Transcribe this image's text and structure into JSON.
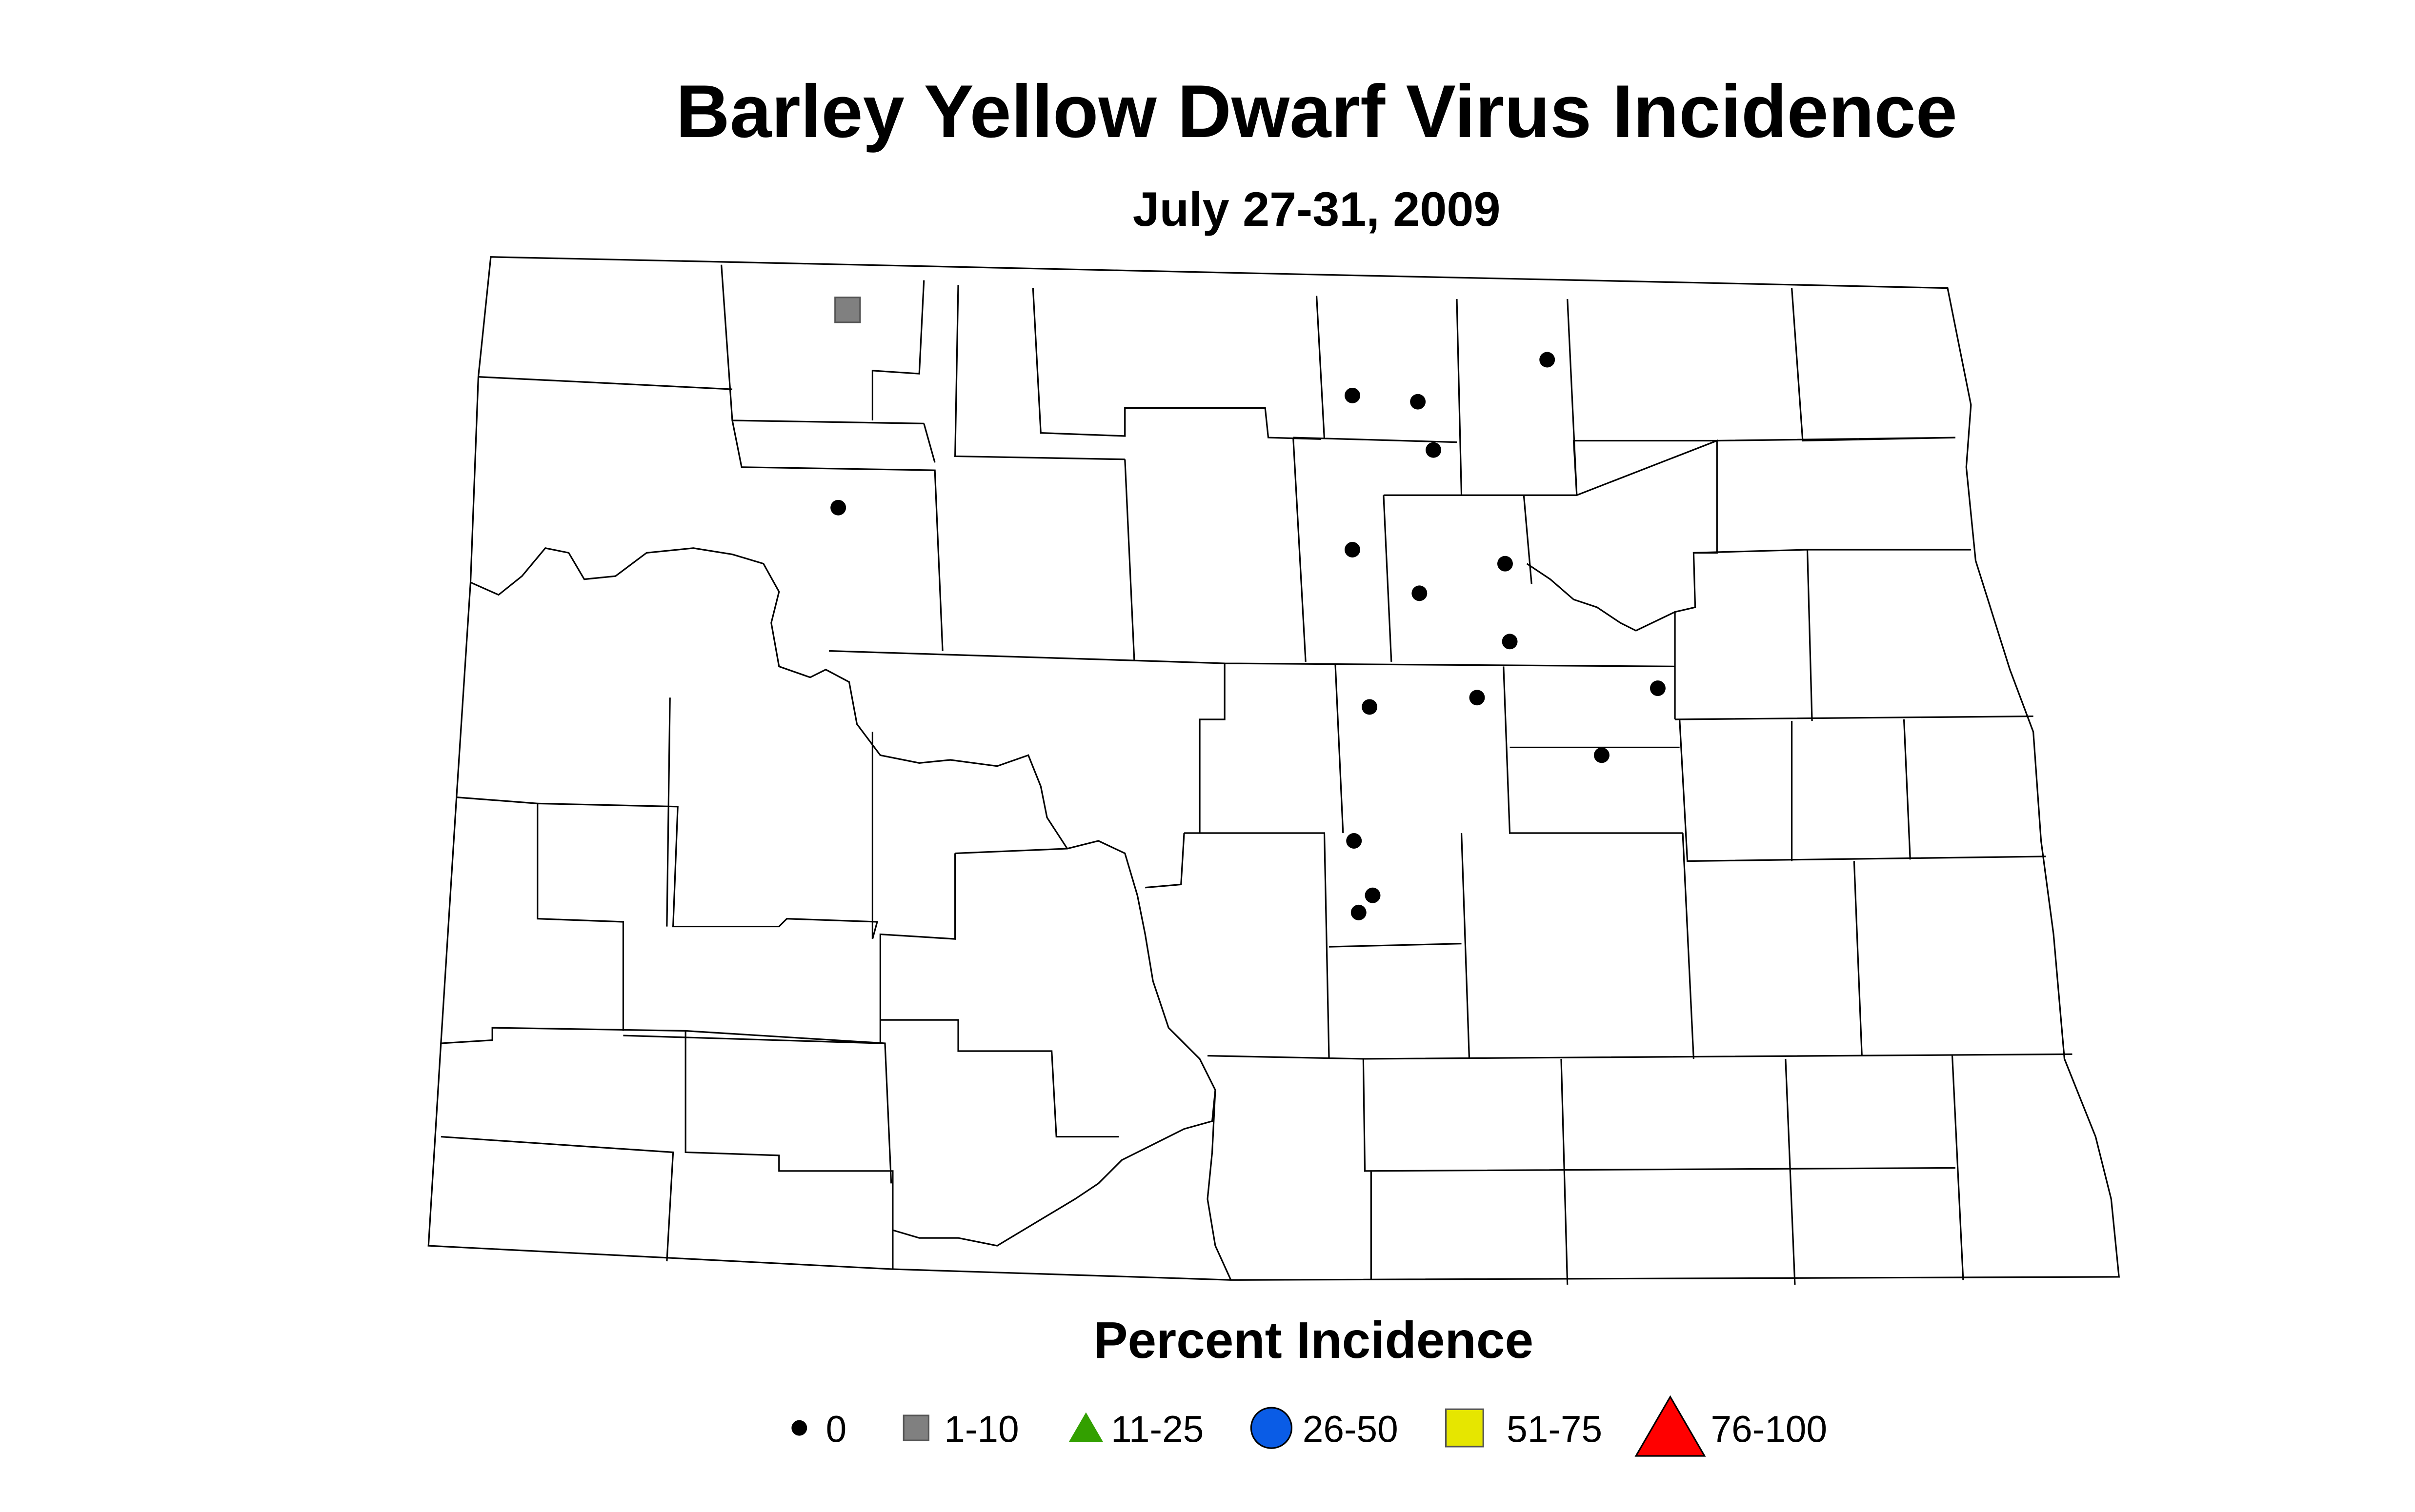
{
  "title": "Barley Yellow Dwarf Virus Incidence",
  "subtitle": "July 27-31, 2009",
  "legend": {
    "title": "Percent Incidence",
    "items": [
      {
        "label": "0",
        "shape": "dot",
        "color": "#000000"
      },
      {
        "label": "1-10",
        "shape": "square",
        "color": "#808080"
      },
      {
        "label": "11-25",
        "shape": "triangle",
        "color": "#33a000"
      },
      {
        "label": "26-50",
        "shape": "circle",
        "color": "#0a5ce6"
      },
      {
        "label": "51-75",
        "shape": "square",
        "color": "#e6e600"
      },
      {
        "label": "76-100",
        "shape": "triangle",
        "color": "#ff0000"
      }
    ]
  }
}
